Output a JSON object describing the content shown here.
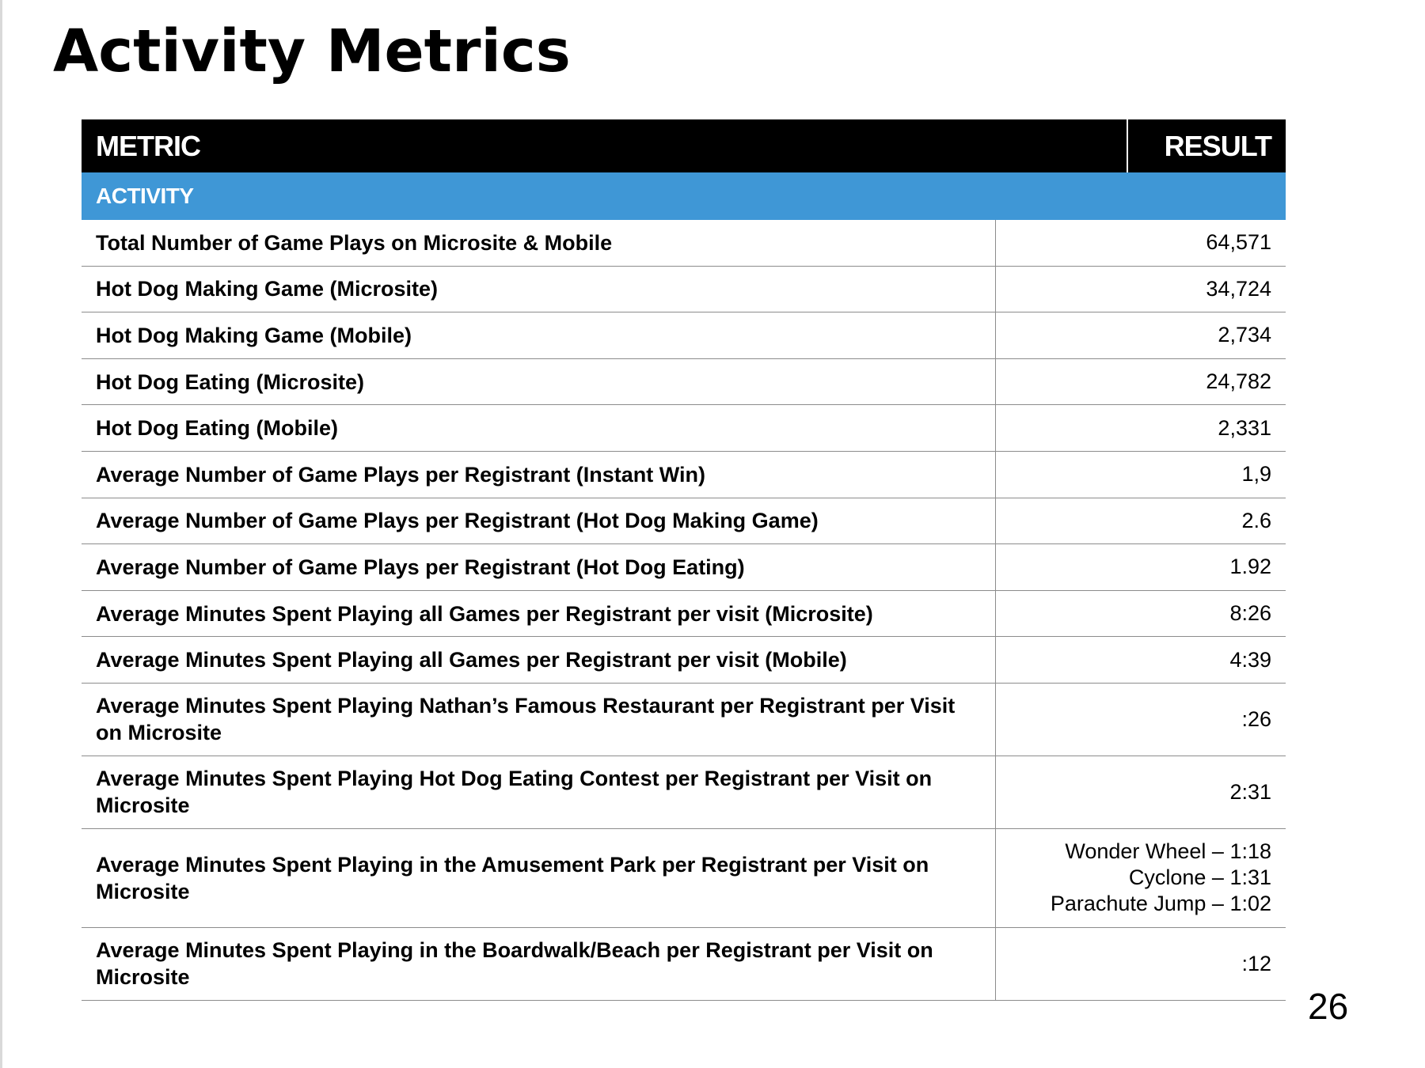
{
  "page": {
    "title": "Activity Metrics",
    "page_number": "26"
  },
  "table": {
    "header": {
      "metric": "METRIC",
      "result": "RESULT"
    },
    "section_label": "ACTIVITY",
    "rows": [
      {
        "metric": "Total Number of Game Plays on Microsite & Mobile",
        "result": "64,571"
      },
      {
        "metric": "Hot Dog Making Game (Microsite)",
        "result": "34,724"
      },
      {
        "metric": "Hot Dog Making Game (Mobile)",
        "result": "2,734"
      },
      {
        "metric": "Hot Dog Eating (Microsite)",
        "result": "24,782"
      },
      {
        "metric": "Hot Dog Eating (Mobile)",
        "result": "2,331"
      },
      {
        "metric": "Average Number of Game Plays per Registrant (Instant Win)",
        "result": "1,9"
      },
      {
        "metric": "Average Number of Game Plays per Registrant (Hot Dog Making Game)",
        "result": "2.6"
      },
      {
        "metric": "Average Number of Game Plays per Registrant (Hot Dog Eating)",
        "result": "1.92"
      },
      {
        "metric": "Average Minutes Spent Playing all Games per Registrant per visit (Microsite)",
        "result": "8:26"
      },
      {
        "metric": "Average Minutes Spent Playing all Games per Registrant per visit (Mobile)",
        "result": "4:39"
      },
      {
        "metric": "Average Minutes Spent Playing Nathan’s Famous Restaurant per Registrant per Visit on Microsite",
        "result": ":26"
      },
      {
        "metric": "Average Minutes Spent Playing Hot Dog Eating Contest per Registrant per Visit on Microsite",
        "result": "2:31"
      },
      {
        "metric": "Average Minutes Spent Playing in the Amusement Park per Registrant per Visit on Microsite",
        "result_lines": [
          "Wonder Wheel – 1:18",
          "Cyclone – 1:31",
          "Parachute Jump – 1:02"
        ]
      },
      {
        "metric": "Average Minutes Spent Playing in the Boardwalk/Beach per Registrant per Visit on Microsite",
        "result": ":12"
      }
    ]
  },
  "colors": {
    "header_bg": "#000000",
    "section_bg": "#3f97d6",
    "row_border": "#8c8c8c"
  }
}
